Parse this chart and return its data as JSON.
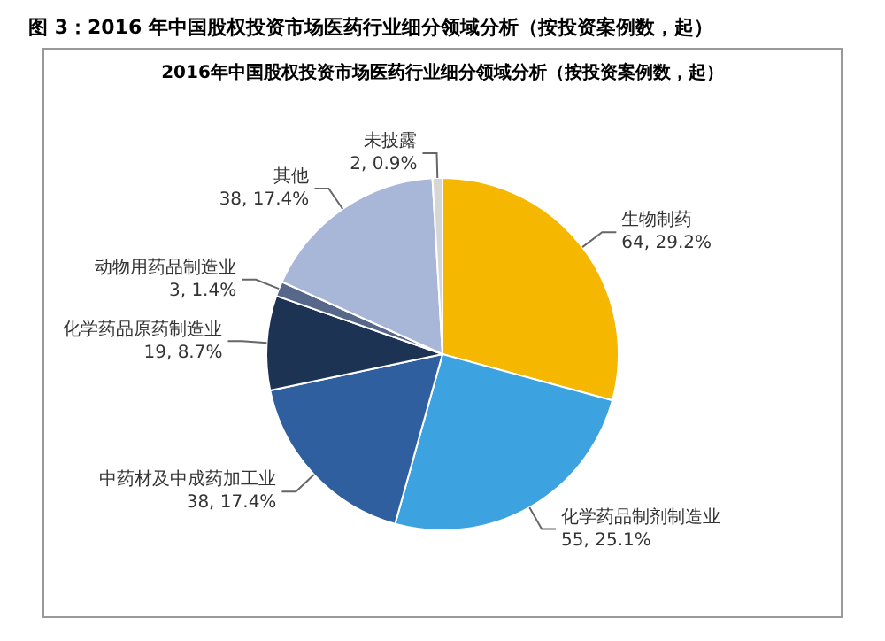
{
  "chart_data": {
    "type": "pie",
    "title": "图 3：2016 年中国股权投资市场医药行业细分领域分析（按投资案例数，起）",
    "subtitle": "2016年中国股权投资市场医药行业细分领域分析（按投资案例数，起）",
    "categories": [
      "生物制药",
      "化学药品制剂制造业",
      "中药材及中成药加工业",
      "化学药品原药制造业",
      "动物用药品制造业",
      "其他",
      "未披露"
    ],
    "values": [
      64,
      55,
      38,
      19,
      3,
      38,
      2
    ],
    "value_labels": [
      "64, 29.2%",
      "55, 25.1%",
      "38, 17.4%",
      "19, 8.7%",
      "3, 1.4%",
      "38, 17.4%",
      "2, 0.9%"
    ],
    "colors": [
      "#f5b700",
      "#3da2e0",
      "#2f5f9f",
      "#1d3354",
      "#56678a",
      "#a8b6d8",
      "#d6d6d6"
    ],
    "legend": false
  }
}
